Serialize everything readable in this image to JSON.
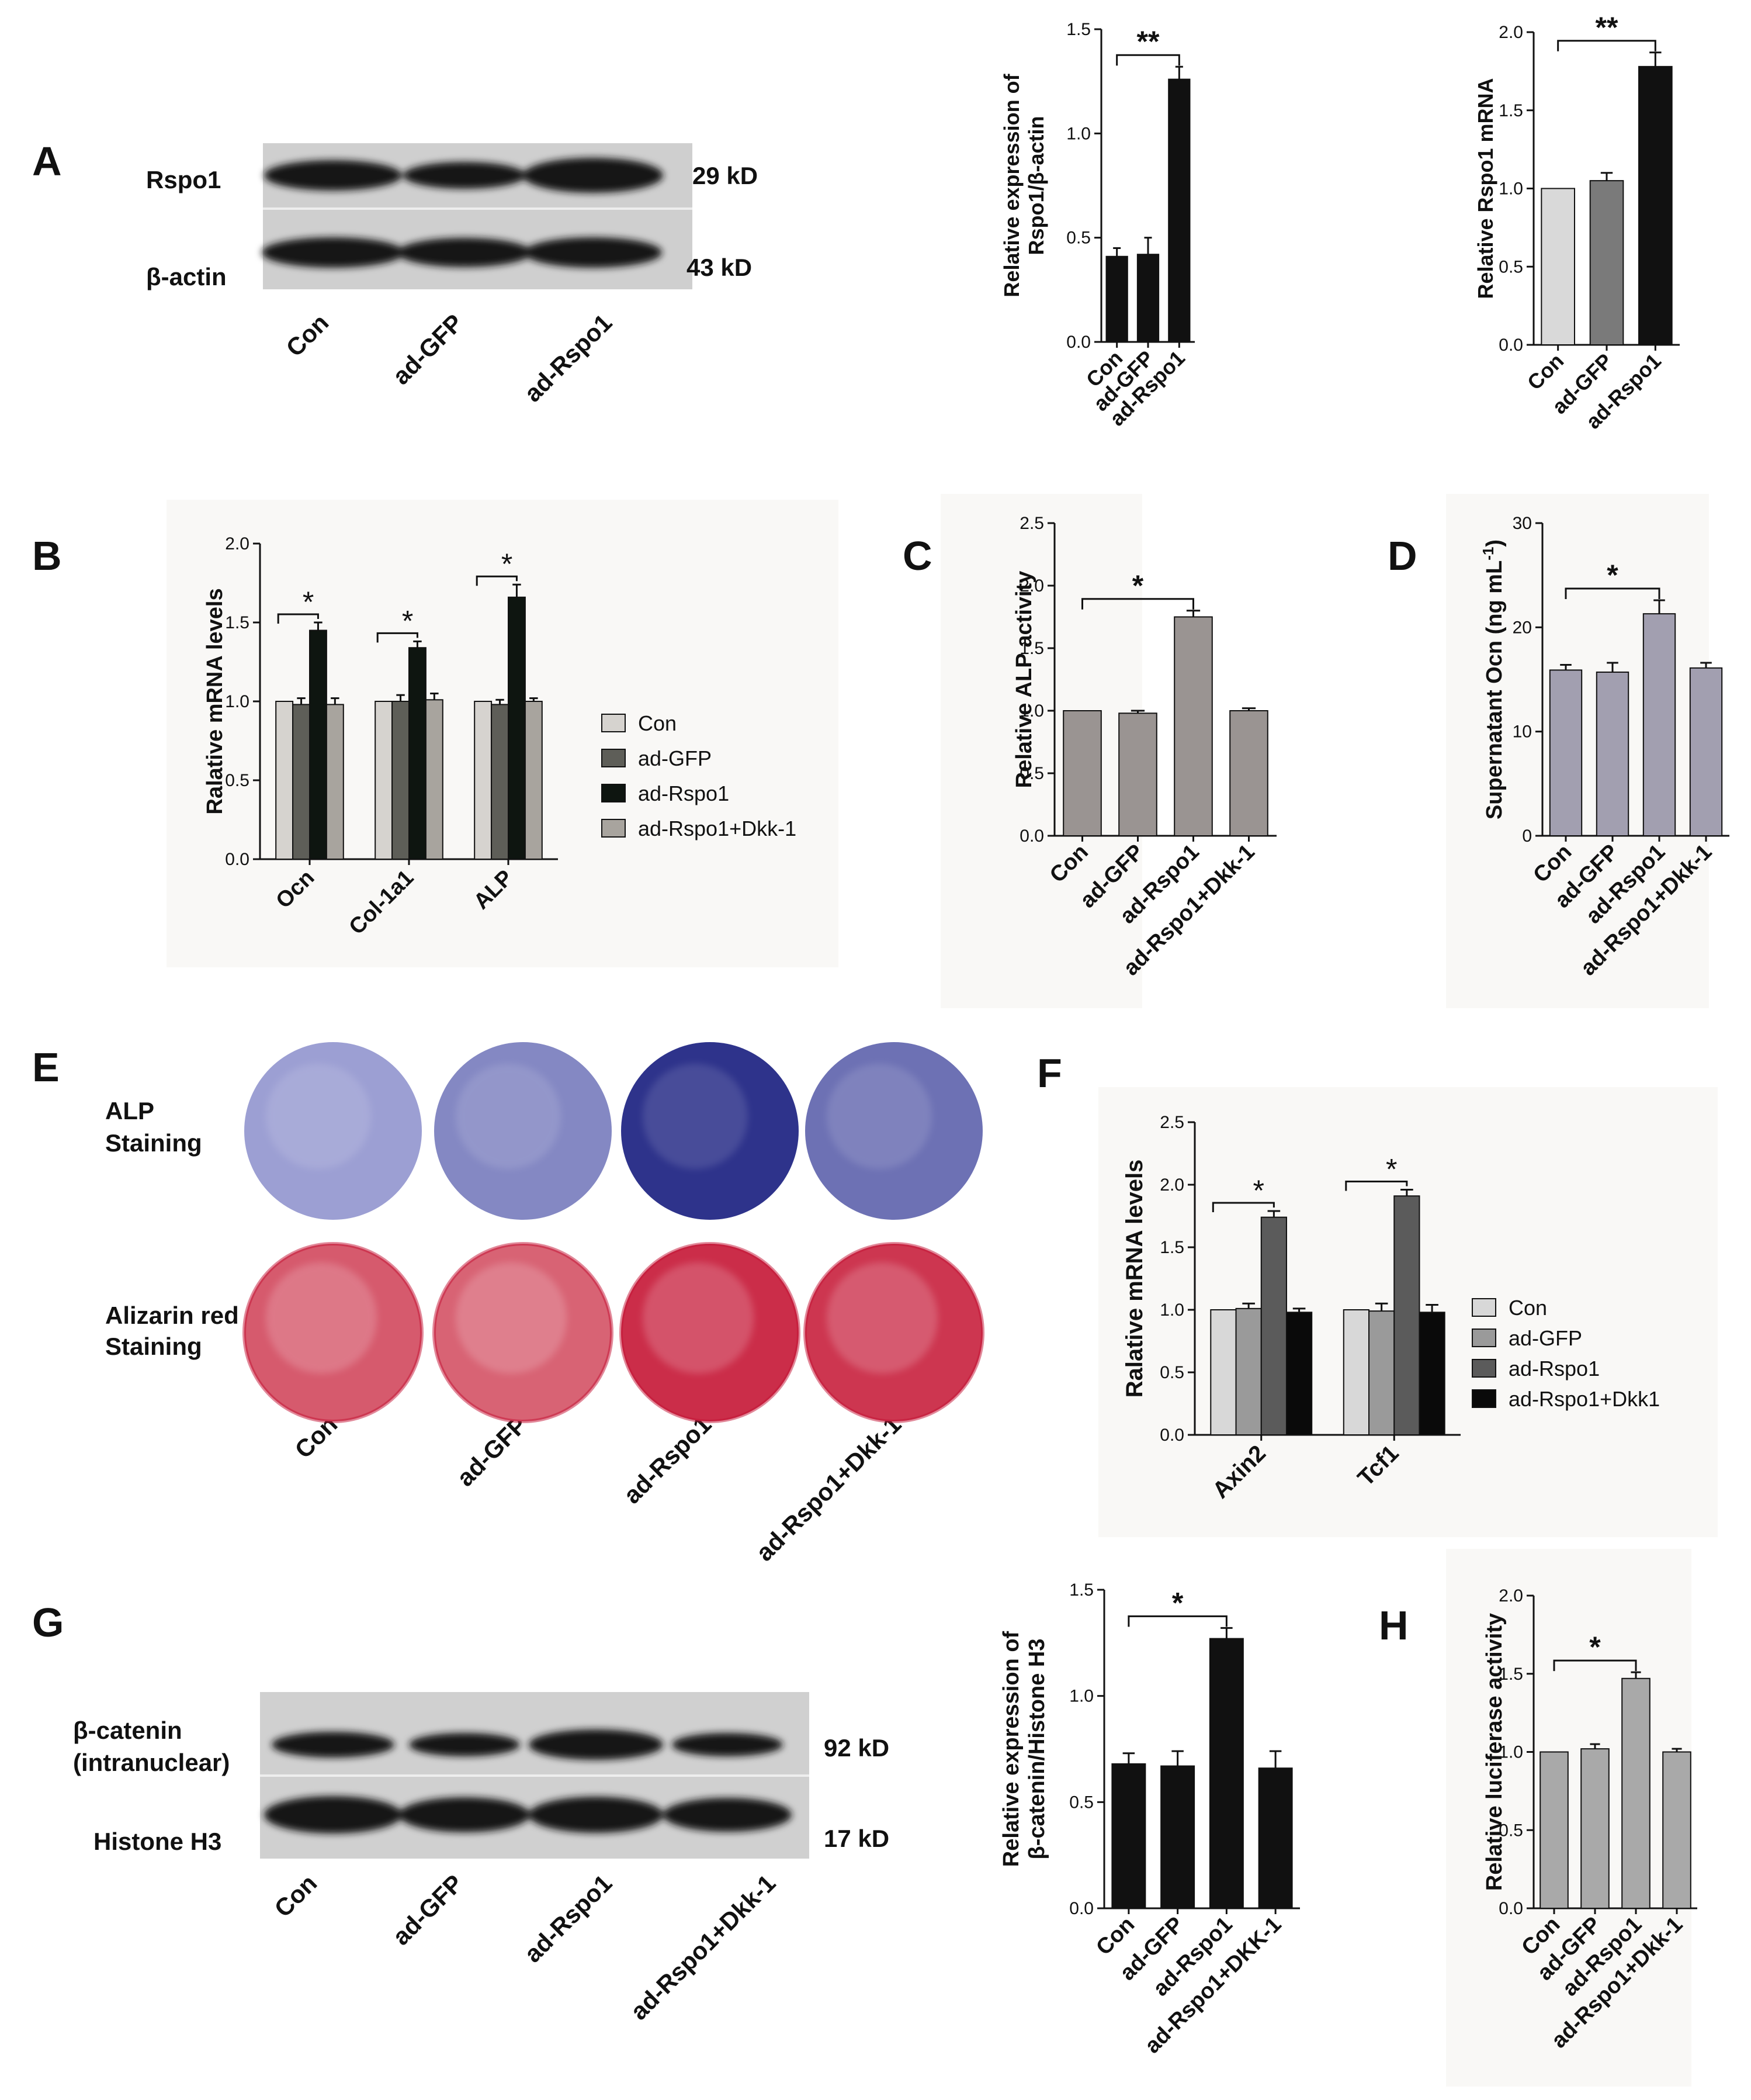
{
  "figure": {
    "panels": {
      "A": {
        "letter": "A",
        "blot": {
          "rows": [
            "Rspo1",
            "β-actin"
          ],
          "sizes": [
            "29 kD",
            "43 kD"
          ],
          "lanes": [
            "Con",
            "ad-GFP",
            "ad-Rspo1"
          ]
        }
      },
      "B": {
        "letter": "B"
      },
      "C": {
        "letter": "C"
      },
      "D": {
        "letter": "D"
      },
      "E": {
        "letter": "E",
        "rows": [
          {
            "label1": "ALP",
            "label2": "Staining"
          },
          {
            "label1": "Alizarin red",
            "label2": "Staining"
          }
        ],
        "lanes": [
          "Con",
          "ad-GFP",
          "ad-Rspo1",
          "ad-Rspo1+Dkk-1"
        ],
        "alp_intensity": [
          0.25,
          0.4,
          0.95,
          0.55
        ],
        "alizarin_intensity": [
          0.6,
          0.55,
          0.85,
          0.8
        ],
        "colors": {
          "alp_light": "#c3c6ec",
          "alp_dark": "#262b86",
          "alizarin_light": "#f0c6c4",
          "alizarin_dark": "#c41233"
        }
      },
      "F": {
        "letter": "F"
      },
      "G": {
        "letter": "G",
        "blot": {
          "rows": [
            "β-catenin",
            "(intranuclear)",
            "Histone H3"
          ],
          "sizes": [
            "92 kD",
            "17 kD"
          ],
          "lanes": [
            "Con",
            "ad-GFP",
            "ad-Rspo1",
            "ad-Rspo1+Dkk-1"
          ]
        }
      },
      "H": {
        "letter": "H"
      }
    }
  },
  "chart_data": [
    {
      "id": "A1",
      "type": "bar",
      "categories": [
        "Con",
        "ad-GFP",
        "ad-Rspo1"
      ],
      "values": [
        0.41,
        0.42,
        1.26
      ],
      "errors": [
        0.04,
        0.08,
        0.06
      ],
      "ylabel_lines": [
        "Relative expression of",
        "Rspo1/β-actin"
      ],
      "ylim": [
        0,
        1.5
      ],
      "yticks": [
        0.0,
        0.5,
        1.0,
        1.5
      ],
      "colors": [
        "#111111",
        "#111111",
        "#111111"
      ],
      "significance": [
        {
          "from": 0,
          "to": 2,
          "label": "**"
        }
      ]
    },
    {
      "id": "A2",
      "type": "bar",
      "categories": [
        "Con",
        "ad-GFP",
        "ad-Rspo1"
      ],
      "values": [
        1.0,
        1.05,
        1.78
      ],
      "errors": [
        0.0,
        0.05,
        0.09
      ],
      "ylabel_lines": [
        "Relative  Rspo1 mRNA"
      ],
      "ylim": [
        0,
        2.0
      ],
      "yticks": [
        0.0,
        0.5,
        1.0,
        1.5,
        2.0
      ],
      "colors": [
        "#d9d9d9",
        "#7a7a7a",
        "#111111"
      ],
      "significance": [
        {
          "from": 0,
          "to": 2,
          "label": "**"
        }
      ]
    },
    {
      "id": "B",
      "type": "bar",
      "categories": [
        "Ocn",
        "Col-1a1",
        "ALP"
      ],
      "series": [
        {
          "name": "Con",
          "values": [
            1.0,
            1.0,
            1.0
          ],
          "errors": [
            0.0,
            0.0,
            0.0
          ],
          "color": "#d6d3cf"
        },
        {
          "name": "ad-GFP",
          "values": [
            0.98,
            1.0,
            0.98
          ],
          "errors": [
            0.04,
            0.04,
            0.03
          ],
          "color": "#5e5e58"
        },
        {
          "name": "ad-Rspo1",
          "values": [
            1.45,
            1.34,
            1.66
          ],
          "errors": [
            0.05,
            0.04,
            0.08
          ],
          "color": "#0e1510"
        },
        {
          "name": "ad-Rspo1+Dkk-1",
          "values": [
            0.98,
            1.01,
            1.0
          ],
          "errors": [
            0.04,
            0.04,
            0.02
          ],
          "color": "#a8a49e"
        }
      ],
      "ylabel_lines": [
        "Ralative mRNA levels"
      ],
      "ylim": [
        0,
        2.0
      ],
      "yticks": [
        0.0,
        0.5,
        1.0,
        1.5,
        2.0
      ],
      "significance": [
        {
          "group": 0,
          "label": "*"
        },
        {
          "group": 1,
          "label": "*"
        },
        {
          "group": 2,
          "label": "*"
        }
      ]
    },
    {
      "id": "C",
      "type": "bar",
      "categories": [
        "Con",
        "ad-GFP",
        "ad-Rspo1",
        "ad-Rspo1+Dkk-1"
      ],
      "values": [
        1.0,
        0.98,
        1.75,
        1.0
      ],
      "errors": [
        0.0,
        0.02,
        0.05,
        0.02
      ],
      "ylabel_lines": [
        "Relative ALP activity"
      ],
      "ylim": [
        0,
        2.5
      ],
      "yticks": [
        0.0,
        0.5,
        1.0,
        1.5,
        2.0,
        2.5
      ],
      "colors": [
        "#9a9492",
        "#9a9492",
        "#9a9492",
        "#9a9492"
      ],
      "significance": [
        {
          "from": 0,
          "to": 2,
          "label": "*"
        }
      ]
    },
    {
      "id": "D",
      "type": "bar",
      "categories": [
        "Con",
        "ad-GFP",
        "ad-Rspo1",
        "ad-Rspo1+Dkk-1"
      ],
      "values": [
        15.9,
        15.7,
        21.3,
        16.1
      ],
      "errors": [
        0.5,
        0.9,
        1.3,
        0.5
      ],
      "ylabel_lines": [
        "Supernatant Ocn (ng mL-1)"
      ],
      "ylim": [
        0,
        30
      ],
      "yticks": [
        0,
        10,
        20,
        30
      ],
      "colors": [
        "#a29fb0",
        "#a29fb0",
        "#a29fb0",
        "#a29fb0"
      ],
      "significance": [
        {
          "from": 0,
          "to": 2,
          "label": "*"
        }
      ]
    },
    {
      "id": "F",
      "type": "bar",
      "categories": [
        "Axin2",
        "Tcf1"
      ],
      "series": [
        {
          "name": "Con",
          "values": [
            1.0,
            1.0
          ],
          "errors": [
            0.0,
            0.0
          ],
          "color": "#d8d8d8"
        },
        {
          "name": "ad-GFP",
          "values": [
            1.01,
            0.99
          ],
          "errors": [
            0.04,
            0.06
          ],
          "color": "#9a9a9a"
        },
        {
          "name": "ad-Rspo1",
          "values": [
            1.74,
            1.91
          ],
          "errors": [
            0.05,
            0.05
          ],
          "color": "#5b5b5b"
        },
        {
          "name": "ad-Rspo1+Dkk1",
          "values": [
            0.98,
            0.98
          ],
          "errors": [
            0.03,
            0.06
          ],
          "color": "#0a0a0a"
        }
      ],
      "ylabel_lines": [
        "Ralative mRNA levels"
      ],
      "ylim": [
        0,
        2.5
      ],
      "yticks": [
        0.0,
        0.5,
        1.0,
        1.5,
        2.0,
        2.5
      ],
      "significance": [
        {
          "group": 0,
          "label": "*"
        },
        {
          "group": 1,
          "label": "*"
        }
      ]
    },
    {
      "id": "G",
      "type": "bar",
      "categories": [
        "Con",
        "ad-GFP",
        "ad-Rspo1",
        "ad-Rspo1+DKK-1"
      ],
      "values": [
        0.68,
        0.67,
        1.27,
        0.66
      ],
      "errors": [
        0.05,
        0.07,
        0.05,
        0.08
      ],
      "ylabel_lines": [
        "Relative expression of",
        "β-catenin/Histone H3"
      ],
      "ylim": [
        0,
        1.5
      ],
      "yticks": [
        0.0,
        0.5,
        1.0,
        1.5
      ],
      "colors": [
        "#111111",
        "#111111",
        "#111111",
        "#111111"
      ],
      "significance": [
        {
          "from": 0,
          "to": 2,
          "label": "*"
        }
      ]
    },
    {
      "id": "H",
      "type": "bar",
      "categories": [
        "Con",
        "ad-GFP",
        "ad-Rspo1",
        "ad-Rspo1+Dkk-1"
      ],
      "values": [
        1.0,
        1.02,
        1.47,
        1.0
      ],
      "errors": [
        0.0,
        0.03,
        0.04,
        0.02
      ],
      "ylabel_lines": [
        "Relative luciferase activity"
      ],
      "ylim": [
        0,
        2.0
      ],
      "yticks": [
        0.0,
        0.5,
        1.0,
        1.5,
        2.0
      ],
      "colors": [
        "#a9a9a9",
        "#a9a9a9",
        "#a9a9a9",
        "#a9a9a9"
      ],
      "significance": [
        {
          "from": 0,
          "to": 2,
          "label": "*"
        }
      ]
    }
  ]
}
